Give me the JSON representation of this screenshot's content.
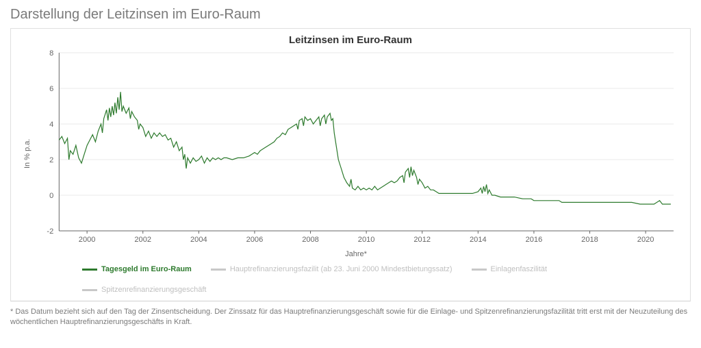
{
  "page_title": "Darstellung der Leitzinsen im Euro-Raum",
  "chart": {
    "type": "line",
    "title": "Leitzinsen im Euro-Raum",
    "ylabel": "In % p.a.",
    "xlabel": "Jahre*",
    "title_fontsize": 15,
    "label_fontsize": 11,
    "background_color": "#ffffff",
    "grid_color": "#e8e8e8",
    "axis_color": "#666666",
    "series_color_active": "#2d7a2d",
    "series_color_inactive": "#c8c8c8",
    "line_width": 1.2,
    "xlim": [
      1999,
      2021
    ],
    "ylim": [
      -2,
      8
    ],
    "xticks": [
      2000,
      2002,
      2004,
      2006,
      2008,
      2010,
      2012,
      2014,
      2016,
      2018,
      2020
    ],
    "yticks": [
      -2,
      0,
      2,
      4,
      6,
      8
    ],
    "legend_items": [
      {
        "label": "Tagesgeld im Euro-Raum",
        "active": true
      },
      {
        "label": "Hauptrefinanzierungsfazilit (ab 23. Juni 2000 Mindestbietungssatz)",
        "active": false
      },
      {
        "label": "Einlagenfaszilität",
        "active": false
      },
      {
        "label": "Spitzenrefinanzierungsgeschäft",
        "active": false
      }
    ],
    "series": [
      {
        "name": "Tagesgeld im Euro-Raum",
        "color": "#2d7a2d",
        "points": [
          [
            1999.0,
            3.1
          ],
          [
            1999.1,
            3.3
          ],
          [
            1999.2,
            2.9
          ],
          [
            1999.3,
            3.2
          ],
          [
            1999.35,
            2.0
          ],
          [
            1999.4,
            2.5
          ],
          [
            1999.5,
            2.3
          ],
          [
            1999.6,
            2.8
          ],
          [
            1999.7,
            2.1
          ],
          [
            1999.8,
            1.8
          ],
          [
            1999.9,
            2.3
          ],
          [
            2000.0,
            2.8
          ],
          [
            2000.1,
            3.1
          ],
          [
            2000.2,
            3.4
          ],
          [
            2000.3,
            3.0
          ],
          [
            2000.4,
            3.6
          ],
          [
            2000.5,
            4.0
          ],
          [
            2000.55,
            3.5
          ],
          [
            2000.6,
            4.3
          ],
          [
            2000.7,
            4.8
          ],
          [
            2000.75,
            4.2
          ],
          [
            2000.8,
            4.9
          ],
          [
            2000.85,
            4.4
          ],
          [
            2000.9,
            5.0
          ],
          [
            2000.95,
            4.5
          ],
          [
            2001.0,
            5.2
          ],
          [
            2001.05,
            4.6
          ],
          [
            2001.1,
            5.5
          ],
          [
            2001.15,
            4.8
          ],
          [
            2001.2,
            5.8
          ],
          [
            2001.25,
            4.7
          ],
          [
            2001.3,
            5.0
          ],
          [
            2001.4,
            4.6
          ],
          [
            2001.5,
            4.9
          ],
          [
            2001.55,
            4.3
          ],
          [
            2001.6,
            4.7
          ],
          [
            2001.7,
            4.4
          ],
          [
            2001.8,
            4.2
          ],
          [
            2001.85,
            3.7
          ],
          [
            2001.9,
            4.0
          ],
          [
            2002.0,
            3.8
          ],
          [
            2002.1,
            3.3
          ],
          [
            2002.2,
            3.6
          ],
          [
            2002.3,
            3.2
          ],
          [
            2002.4,
            3.5
          ],
          [
            2002.5,
            3.3
          ],
          [
            2002.6,
            3.5
          ],
          [
            2002.7,
            3.3
          ],
          [
            2002.8,
            3.4
          ],
          [
            2002.9,
            3.1
          ],
          [
            2003.0,
            3.2
          ],
          [
            2003.1,
            2.7
          ],
          [
            2003.2,
            3.0
          ],
          [
            2003.3,
            2.5
          ],
          [
            2003.4,
            2.7
          ],
          [
            2003.45,
            2.0
          ],
          [
            2003.5,
            2.3
          ],
          [
            2003.55,
            1.5
          ],
          [
            2003.6,
            2.1
          ],
          [
            2003.7,
            1.8
          ],
          [
            2003.8,
            2.1
          ],
          [
            2003.9,
            1.9
          ],
          [
            2004.0,
            2.0
          ],
          [
            2004.1,
            2.2
          ],
          [
            2004.2,
            1.8
          ],
          [
            2004.3,
            2.1
          ],
          [
            2004.4,
            1.9
          ],
          [
            2004.5,
            2.1
          ],
          [
            2004.6,
            2.0
          ],
          [
            2004.7,
            2.1
          ],
          [
            2004.8,
            2.0
          ],
          [
            2004.9,
            2.1
          ],
          [
            2005.0,
            2.1
          ],
          [
            2005.2,
            2.0
          ],
          [
            2005.4,
            2.1
          ],
          [
            2005.6,
            2.1
          ],
          [
            2005.8,
            2.2
          ],
          [
            2005.9,
            2.3
          ],
          [
            2006.0,
            2.4
          ],
          [
            2006.1,
            2.3
          ],
          [
            2006.2,
            2.5
          ],
          [
            2006.3,
            2.6
          ],
          [
            2006.4,
            2.7
          ],
          [
            2006.5,
            2.8
          ],
          [
            2006.6,
            2.9
          ],
          [
            2006.7,
            3.0
          ],
          [
            2006.8,
            3.2
          ],
          [
            2006.9,
            3.3
          ],
          [
            2007.0,
            3.5
          ],
          [
            2007.1,
            3.4
          ],
          [
            2007.2,
            3.7
          ],
          [
            2007.3,
            3.8
          ],
          [
            2007.4,
            3.9
          ],
          [
            2007.5,
            4.0
          ],
          [
            2007.55,
            3.7
          ],
          [
            2007.6,
            4.2
          ],
          [
            2007.7,
            4.3
          ],
          [
            2007.75,
            3.9
          ],
          [
            2007.8,
            4.4
          ],
          [
            2007.9,
            4.2
          ],
          [
            2008.0,
            4.3
          ],
          [
            2008.1,
            4.0
          ],
          [
            2008.2,
            4.2
          ],
          [
            2008.3,
            4.4
          ],
          [
            2008.35,
            3.9
          ],
          [
            2008.4,
            4.3
          ],
          [
            2008.5,
            4.5
          ],
          [
            2008.55,
            4.0
          ],
          [
            2008.6,
            4.4
          ],
          [
            2008.7,
            4.6
          ],
          [
            2008.75,
            4.2
          ],
          [
            2008.8,
            4.3
          ],
          [
            2008.85,
            3.5
          ],
          [
            2008.9,
            3.0
          ],
          [
            2008.95,
            2.5
          ],
          [
            2009.0,
            2.0
          ],
          [
            2009.1,
            1.5
          ],
          [
            2009.2,
            1.0
          ],
          [
            2009.3,
            0.7
          ],
          [
            2009.4,
            0.5
          ],
          [
            2009.45,
            0.9
          ],
          [
            2009.5,
            0.4
          ],
          [
            2009.6,
            0.3
          ],
          [
            2009.7,
            0.5
          ],
          [
            2009.8,
            0.3
          ],
          [
            2009.9,
            0.4
          ],
          [
            2010.0,
            0.3
          ],
          [
            2010.1,
            0.4
          ],
          [
            2010.2,
            0.3
          ],
          [
            2010.3,
            0.5
          ],
          [
            2010.4,
            0.3
          ],
          [
            2010.5,
            0.4
          ],
          [
            2010.6,
            0.5
          ],
          [
            2010.7,
            0.6
          ],
          [
            2010.8,
            0.7
          ],
          [
            2010.9,
            0.8
          ],
          [
            2011.0,
            0.7
          ],
          [
            2011.1,
            0.8
          ],
          [
            2011.2,
            1.0
          ],
          [
            2011.3,
            1.1
          ],
          [
            2011.35,
            0.7
          ],
          [
            2011.4,
            1.3
          ],
          [
            2011.5,
            1.5
          ],
          [
            2011.55,
            1.0
          ],
          [
            2011.6,
            1.6
          ],
          [
            2011.65,
            1.1
          ],
          [
            2011.7,
            1.4
          ],
          [
            2011.8,
            1.0
          ],
          [
            2011.85,
            0.6
          ],
          [
            2011.9,
            0.9
          ],
          [
            2012.0,
            0.7
          ],
          [
            2012.1,
            0.4
          ],
          [
            2012.2,
            0.5
          ],
          [
            2012.3,
            0.3
          ],
          [
            2012.4,
            0.3
          ],
          [
            2012.5,
            0.2
          ],
          [
            2012.6,
            0.1
          ],
          [
            2012.7,
            0.1
          ],
          [
            2012.8,
            0.1
          ],
          [
            2012.9,
            0.1
          ],
          [
            2013.0,
            0.1
          ],
          [
            2013.2,
            0.1
          ],
          [
            2013.4,
            0.1
          ],
          [
            2013.6,
            0.1
          ],
          [
            2013.8,
            0.1
          ],
          [
            2014.0,
            0.2
          ],
          [
            2014.1,
            0.4
          ],
          [
            2014.15,
            0.1
          ],
          [
            2014.2,
            0.5
          ],
          [
            2014.25,
            0.2
          ],
          [
            2014.3,
            0.6
          ],
          [
            2014.35,
            0.1
          ],
          [
            2014.4,
            0.3
          ],
          [
            2014.5,
            0.0
          ],
          [
            2014.6,
            0.0
          ],
          [
            2014.8,
            -0.1
          ],
          [
            2015.0,
            -0.1
          ],
          [
            2015.3,
            -0.1
          ],
          [
            2015.6,
            -0.2
          ],
          [
            2015.9,
            -0.2
          ],
          [
            2016.0,
            -0.3
          ],
          [
            2016.3,
            -0.3
          ],
          [
            2016.6,
            -0.3
          ],
          [
            2016.9,
            -0.3
          ],
          [
            2017.0,
            -0.4
          ],
          [
            2017.5,
            -0.4
          ],
          [
            2018.0,
            -0.4
          ],
          [
            2018.5,
            -0.4
          ],
          [
            2019.0,
            -0.4
          ],
          [
            2019.5,
            -0.4
          ],
          [
            2019.8,
            -0.5
          ],
          [
            2020.0,
            -0.5
          ],
          [
            2020.3,
            -0.5
          ],
          [
            2020.5,
            -0.3
          ],
          [
            2020.6,
            -0.5
          ],
          [
            2020.9,
            -0.5
          ]
        ]
      }
    ]
  },
  "footnote": "* Das Datum bezieht sich auf den Tag der Zinsentscheidung. Der Zinssatz für das Hauptrefinanzierungsgeschäft sowie für die Einlage- und Spitzenrefinanzierungsfazilität tritt erst mit der Neuzuteilung des wöchentlichen Hauptrefinanzierungsgeschäfts in Kraft."
}
